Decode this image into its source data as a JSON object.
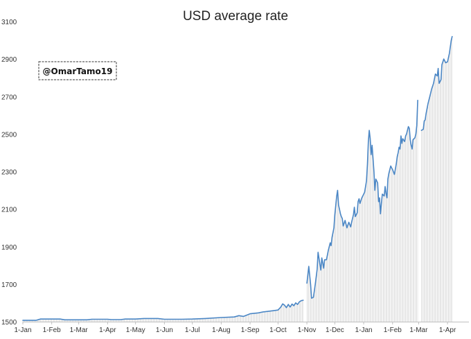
{
  "chart_data": {
    "type": "line",
    "title": "USD average rate",
    "xlabel": "",
    "ylabel": "",
    "ylim": [
      1500,
      3100
    ],
    "yticks": [
      1500,
      1700,
      1900,
      2100,
      2300,
      2500,
      2700,
      2900,
      3100
    ],
    "ytick_labels": [
      "1500",
      "1700",
      "1900",
      "2100",
      "2300",
      "2500",
      "2700",
      "2900",
      "3100"
    ],
    "xticks": [
      {
        "label": "1-Jan",
        "date": "2020-01-01"
      },
      {
        "label": "1-Feb",
        "date": "2020-02-01"
      },
      {
        "label": "1-Mar",
        "date": "2020-03-01"
      },
      {
        "label": "1-Apr",
        "date": "2020-04-01"
      },
      {
        "label": "1-May",
        "date": "2020-05-01"
      },
      {
        "label": "1-Jun",
        "date": "2020-06-01"
      },
      {
        "label": "1-Jul",
        "date": "2020-07-01"
      },
      {
        "label": "1-Aug",
        "date": "2020-08-01"
      },
      {
        "label": "1-Sep",
        "date": "2020-09-01"
      },
      {
        "label": "1-Oct",
        "date": "2020-10-01"
      },
      {
        "label": "1-Nov",
        "date": "2020-11-01"
      },
      {
        "label": "1-Dec",
        "date": "2020-12-01"
      },
      {
        "label": "1-Jan",
        "date": "2021-01-01"
      },
      {
        "label": "1-Feb",
        "date": "2021-02-01"
      },
      {
        "label": "1-Mar",
        "date": "2021-03-01"
      },
      {
        "label": "1-Apr",
        "date": "2021-04-01"
      }
    ],
    "xlim": [
      "2020-01-01",
      "2021-04-24"
    ],
    "grid": false,
    "line_color": "#4a86c5",
    "series": [
      {
        "segments": [
          [
            [
              "2020-01-01",
              1507
            ],
            [
              "2020-01-15",
              1507
            ],
            [
              "2020-01-20",
              1514
            ],
            [
              "2020-02-10",
              1514
            ],
            [
              "2020-02-15",
              1510
            ],
            [
              "2020-03-10",
              1510
            ],
            [
              "2020-03-15",
              1513
            ],
            [
              "2020-04-01",
              1513
            ],
            [
              "2020-04-05",
              1511
            ],
            [
              "2020-04-15",
              1511
            ],
            [
              "2020-04-20",
              1514
            ],
            [
              "2020-05-01",
              1514
            ],
            [
              "2020-05-10",
              1517
            ],
            [
              "2020-05-25",
              1517
            ],
            [
              "2020-06-01",
              1513
            ],
            [
              "2020-06-20",
              1513
            ],
            [
              "2020-07-01",
              1514
            ],
            [
              "2020-07-15",
              1517
            ],
            [
              "2020-08-01",
              1522
            ],
            [
              "2020-08-15",
              1525
            ],
            [
              "2020-08-20",
              1532
            ],
            [
              "2020-08-25",
              1528
            ],
            [
              "2020-09-01",
              1542
            ],
            [
              "2020-09-10",
              1547
            ],
            [
              "2020-09-15",
              1552
            ],
            [
              "2020-09-25",
              1558
            ],
            [
              "2020-10-01",
              1562
            ],
            [
              "2020-10-04",
              1578
            ],
            [
              "2020-10-06",
              1595
            ],
            [
              "2020-10-08",
              1588
            ],
            [
              "2020-10-10",
              1575
            ],
            [
              "2020-10-12",
              1592
            ],
            [
              "2020-10-14",
              1578
            ],
            [
              "2020-10-16",
              1594
            ],
            [
              "2020-10-18",
              1585
            ],
            [
              "2020-10-20",
              1600
            ],
            [
              "2020-10-22",
              1592
            ],
            [
              "2020-10-24",
              1606
            ],
            [
              "2020-10-26",
              1612
            ],
            [
              "2020-10-28",
              1614
            ]
          ],
          [
            [
              "2020-11-01",
              1705
            ],
            [
              "2020-11-03",
              1795
            ],
            [
              "2020-11-05",
              1700
            ],
            [
              "2020-11-06",
              1625
            ],
            [
              "2020-11-08",
              1630
            ],
            [
              "2020-11-10",
              1700
            ],
            [
              "2020-11-12",
              1780
            ],
            [
              "2020-11-13",
              1870
            ],
            [
              "2020-11-15",
              1805
            ],
            [
              "2020-11-16",
              1775
            ],
            [
              "2020-11-17",
              1840
            ],
            [
              "2020-11-19",
              1785
            ],
            [
              "2020-11-20",
              1830
            ],
            [
              "2020-11-22",
              1830
            ],
            [
              "2020-11-24",
              1880
            ],
            [
              "2020-11-26",
              1920
            ],
            [
              "2020-11-27",
              1905
            ],
            [
              "2020-11-28",
              1950
            ],
            [
              "2020-11-30",
              2000
            ],
            [
              "2020-12-01",
              2070
            ],
            [
              "2020-12-03",
              2170
            ],
            [
              "2020-12-04",
              2200
            ],
            [
              "2020-12-05",
              2120
            ],
            [
              "2020-12-06",
              2100
            ],
            [
              "2020-12-07",
              2075
            ],
            [
              "2020-12-08",
              2060
            ],
            [
              "2020-12-09",
              2050
            ],
            [
              "2020-12-10",
              2010
            ],
            [
              "2020-12-12",
              2040
            ],
            [
              "2020-12-14",
              2000
            ],
            [
              "2020-12-16",
              2030
            ],
            [
              "2020-12-18",
              2005
            ],
            [
              "2020-12-19",
              2030
            ],
            [
              "2020-12-21",
              2070
            ],
            [
              "2020-12-22",
              2110
            ],
            [
              "2020-12-23",
              2060
            ],
            [
              "2020-12-25",
              2080
            ],
            [
              "2020-12-26",
              2140
            ],
            [
              "2020-12-27",
              2155
            ],
            [
              "2020-12-28",
              2130
            ],
            [
              "2020-12-30",
              2160
            ],
            [
              "2021-01-02",
              2190
            ],
            [
              "2021-01-04",
              2250
            ],
            [
              "2021-01-05",
              2340
            ],
            [
              "2021-01-06",
              2460
            ],
            [
              "2021-01-07",
              2520
            ],
            [
              "2021-01-08",
              2475
            ],
            [
              "2021-01-09",
              2390
            ],
            [
              "2021-01-10",
              2440
            ],
            [
              "2021-01-12",
              2300
            ],
            [
              "2021-01-13",
              2200
            ],
            [
              "2021-01-14",
              2260
            ],
            [
              "2021-01-16",
              2240
            ],
            [
              "2021-01-17",
              2140
            ],
            [
              "2021-01-18",
              2160
            ],
            [
              "2021-01-19",
              2075
            ],
            [
              "2021-01-20",
              2130
            ],
            [
              "2021-01-21",
              2180
            ],
            [
              "2021-01-23",
              2170
            ],
            [
              "2021-01-24",
              2220
            ],
            [
              "2021-01-25",
              2185
            ],
            [
              "2021-01-26",
              2160
            ],
            [
              "2021-01-27",
              2260
            ],
            [
              "2021-01-28",
              2290
            ],
            [
              "2021-01-30",
              2330
            ],
            [
              "2021-01-31",
              2320
            ],
            [
              "2021-02-01",
              2310
            ],
            [
              "2021-02-03",
              2285
            ],
            [
              "2021-02-05",
              2340
            ],
            [
              "2021-02-06",
              2380
            ],
            [
              "2021-02-07",
              2400
            ],
            [
              "2021-02-08",
              2430
            ],
            [
              "2021-02-09",
              2420
            ],
            [
              "2021-02-10",
              2490
            ],
            [
              "2021-02-11",
              2450
            ],
            [
              "2021-02-12",
              2475
            ],
            [
              "2021-02-14",
              2460
            ],
            [
              "2021-02-15",
              2490
            ],
            [
              "2021-02-16",
              2500
            ],
            [
              "2021-02-18",
              2540
            ],
            [
              "2021-02-19",
              2530
            ],
            [
              "2021-02-20",
              2470
            ],
            [
              "2021-02-21",
              2440
            ],
            [
              "2021-02-22",
              2420
            ],
            [
              "2021-02-23",
              2470
            ],
            [
              "2021-02-25",
              2480
            ],
            [
              "2021-02-26",
              2500
            ],
            [
              "2021-02-27",
              2545
            ],
            [
              "2021-02-28",
              2680
            ]
          ],
          [
            [
              "2021-03-04",
              2520
            ],
            [
              "2021-03-06",
              2525
            ],
            [
              "2021-03-07",
              2570
            ],
            [
              "2021-03-08",
              2575
            ],
            [
              "2021-03-09",
              2610
            ],
            [
              "2021-03-11",
              2660
            ],
            [
              "2021-03-13",
              2700
            ],
            [
              "2021-03-15",
              2740
            ],
            [
              "2021-03-17",
              2770
            ],
            [
              "2021-03-19",
              2820
            ],
            [
              "2021-03-21",
              2810
            ],
            [
              "2021-03-22",
              2850
            ],
            [
              "2021-03-23",
              2770
            ],
            [
              "2021-03-25",
              2790
            ],
            [
              "2021-03-26",
              2870
            ],
            [
              "2021-03-28",
              2900
            ],
            [
              "2021-03-30",
              2880
            ],
            [
              "2021-04-01",
              2885
            ],
            [
              "2021-04-03",
              2930
            ],
            [
              "2021-04-05",
              3000
            ],
            [
              "2021-04-06",
              3020
            ]
          ]
        ]
      }
    ]
  },
  "watermark": {
    "text": "@OmarTamo19"
  }
}
